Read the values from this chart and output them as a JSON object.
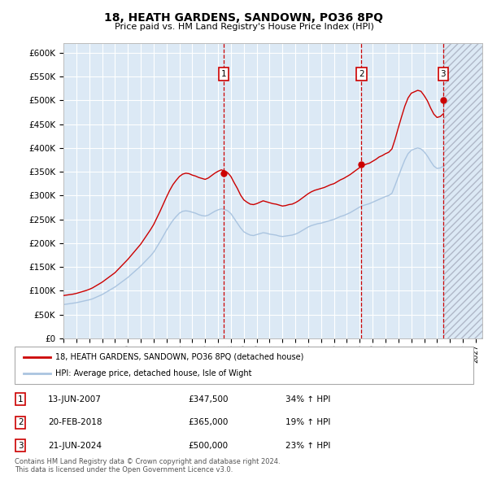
{
  "title": "18, HEATH GARDENS, SANDOWN, PO36 8PQ",
  "subtitle": "Price paid vs. HM Land Registry's House Price Index (HPI)",
  "ylim": [
    0,
    620000
  ],
  "yticks": [
    0,
    50000,
    100000,
    150000,
    200000,
    250000,
    300000,
    350000,
    400000,
    450000,
    500000,
    550000,
    600000
  ],
  "xlim_start": 1995.0,
  "xlim_end": 2027.5,
  "hpi_color": "#aac4e0",
  "price_color": "#cc0000",
  "bg_color": "#dce9f5",
  "grid_color": "#ffffff",
  "sale_dates": [
    2007.45,
    2018.13,
    2024.47
  ],
  "sale_prices": [
    347500,
    365000,
    500000
  ],
  "sale_labels": [
    "1",
    "2",
    "3"
  ],
  "legend_label_red": "18, HEATH GARDENS, SANDOWN, PO36 8PQ (detached house)",
  "legend_label_blue": "HPI: Average price, detached house, Isle of Wight",
  "table_rows": [
    [
      "1",
      "13-JUN-2007",
      "£347,500",
      "34% ↑ HPI"
    ],
    [
      "2",
      "20-FEB-2018",
      "£365,000",
      "19% ↑ HPI"
    ],
    [
      "3",
      "21-JUN-2024",
      "£500,000",
      "23% ↑ HPI"
    ]
  ],
  "footnote": "Contains HM Land Registry data © Crown copyright and database right 2024.\nThis data is licensed under the Open Government Licence v3.0.",
  "hpi_x": [
    1995.0,
    1995.25,
    1995.5,
    1995.75,
    1996.0,
    1996.25,
    1996.5,
    1996.75,
    1997.0,
    1997.25,
    1997.5,
    1997.75,
    1998.0,
    1998.25,
    1998.5,
    1998.75,
    1999.0,
    1999.25,
    1999.5,
    1999.75,
    2000.0,
    2000.25,
    2000.5,
    2000.75,
    2001.0,
    2001.25,
    2001.5,
    2001.75,
    2002.0,
    2002.25,
    2002.5,
    2002.75,
    2003.0,
    2003.25,
    2003.5,
    2003.75,
    2004.0,
    2004.25,
    2004.5,
    2004.75,
    2005.0,
    2005.25,
    2005.5,
    2005.75,
    2006.0,
    2006.25,
    2006.5,
    2006.75,
    2007.0,
    2007.25,
    2007.5,
    2007.75,
    2008.0,
    2008.25,
    2008.5,
    2008.75,
    2009.0,
    2009.25,
    2009.5,
    2009.75,
    2010.0,
    2010.25,
    2010.5,
    2010.75,
    2011.0,
    2011.25,
    2011.5,
    2011.75,
    2012.0,
    2012.25,
    2012.5,
    2012.75,
    2013.0,
    2013.25,
    2013.5,
    2013.75,
    2014.0,
    2014.25,
    2014.5,
    2014.75,
    2015.0,
    2015.25,
    2015.5,
    2015.75,
    2016.0,
    2016.25,
    2016.5,
    2016.75,
    2017.0,
    2017.25,
    2017.5,
    2017.75,
    2018.0,
    2018.25,
    2018.5,
    2018.75,
    2019.0,
    2019.25,
    2019.5,
    2019.75,
    2020.0,
    2020.25,
    2020.5,
    2020.75,
    2021.0,
    2021.25,
    2021.5,
    2021.75,
    2022.0,
    2022.25,
    2022.5,
    2022.75,
    2023.0,
    2023.25,
    2023.5,
    2023.75,
    2024.0,
    2024.25,
    2024.5
  ],
  "hpi_y": [
    71000,
    72000,
    73000,
    74000,
    75000,
    76500,
    78000,
    79500,
    81000,
    83000,
    86000,
    89000,
    92000,
    96000,
    100000,
    104000,
    108000,
    113000,
    118000,
    123000,
    128000,
    134000,
    140000,
    146000,
    152000,
    159000,
    166000,
    173000,
    181000,
    192000,
    203000,
    215000,
    227000,
    238000,
    248000,
    256000,
    263000,
    267000,
    268000,
    267000,
    265000,
    263000,
    260000,
    258000,
    257000,
    259000,
    263000,
    267000,
    270000,
    272000,
    271000,
    268000,
    262000,
    252000,
    242000,
    232000,
    224000,
    220000,
    217000,
    216000,
    218000,
    220000,
    222000,
    221000,
    219000,
    218000,
    217000,
    215000,
    214000,
    215000,
    216000,
    217000,
    219000,
    222000,
    226000,
    230000,
    234000,
    237000,
    239000,
    241000,
    242000,
    244000,
    246000,
    248000,
    250000,
    253000,
    256000,
    258000,
    261000,
    264000,
    268000,
    272000,
    276000,
    279000,
    281000,
    283000,
    286000,
    289000,
    292000,
    295000,
    298000,
    300000,
    305000,
    322000,
    340000,
    358000,
    375000,
    388000,
    395000,
    398000,
    400000,
    398000,
    392000,
    383000,
    372000,
    362000,
    357000,
    358000,
    362000
  ],
  "red_x": [
    1995.0,
    1995.25,
    1995.5,
    1995.75,
    1996.0,
    1996.25,
    1996.5,
    1996.75,
    1997.0,
    1997.25,
    1997.5,
    1997.75,
    1998.0,
    1998.25,
    1998.5,
    1998.75,
    1999.0,
    1999.25,
    1999.5,
    1999.75,
    2000.0,
    2000.25,
    2000.5,
    2000.75,
    2001.0,
    2001.25,
    2001.5,
    2001.75,
    2002.0,
    2002.25,
    2002.5,
    2002.75,
    2003.0,
    2003.25,
    2003.5,
    2003.75,
    2004.0,
    2004.25,
    2004.5,
    2004.75,
    2005.0,
    2005.25,
    2005.5,
    2005.75,
    2006.0,
    2006.25,
    2006.5,
    2006.75,
    2007.0,
    2007.25,
    2007.5,
    2007.75,
    2008.0,
    2008.25,
    2008.5,
    2008.75,
    2009.0,
    2009.25,
    2009.5,
    2009.75,
    2010.0,
    2010.25,
    2010.5,
    2010.75,
    2011.0,
    2011.25,
    2011.5,
    2011.75,
    2012.0,
    2012.25,
    2012.5,
    2012.75,
    2013.0,
    2013.25,
    2013.5,
    2013.75,
    2014.0,
    2014.25,
    2014.5,
    2014.75,
    2015.0,
    2015.25,
    2015.5,
    2015.75,
    2016.0,
    2016.25,
    2016.5,
    2016.75,
    2017.0,
    2017.25,
    2017.5,
    2017.75,
    2018.0,
    2018.25,
    2018.5,
    2018.75,
    2019.0,
    2019.25,
    2019.5,
    2019.75,
    2020.0,
    2020.25,
    2020.5,
    2020.75,
    2021.0,
    2021.25,
    2021.5,
    2021.75,
    2022.0,
    2022.25,
    2022.5,
    2022.75,
    2023.0,
    2023.25,
    2023.5,
    2023.75,
    2024.0,
    2024.25,
    2024.5
  ],
  "red_y": [
    90000,
    91000,
    92000,
    93000,
    94500,
    96500,
    98500,
    100500,
    103000,
    106000,
    110000,
    114000,
    118000,
    123000,
    128000,
    133000,
    138000,
    145000,
    152000,
    159000,
    166000,
    174000,
    182000,
    190000,
    198000,
    208000,
    218000,
    228000,
    239000,
    253000,
    267000,
    282000,
    297000,
    311000,
    323000,
    332000,
    340000,
    345000,
    347000,
    346000,
    343000,
    341000,
    338000,
    336000,
    334000,
    337000,
    342000,
    347000,
    351000,
    354000,
    352000,
    348000,
    340000,
    327000,
    315000,
    301000,
    291000,
    286000,
    282000,
    281000,
    283000,
    286000,
    289000,
    287000,
    285000,
    283000,
    282000,
    280000,
    278000,
    279000,
    281000,
    282000,
    285000,
    289000,
    294000,
    299000,
    304000,
    308000,
    311000,
    313000,
    315000,
    317000,
    320000,
    323000,
    325000,
    329000,
    333000,
    336000,
    340000,
    344000,
    349000,
    354000,
    359000,
    363000,
    366000,
    368000,
    372000,
    376000,
    381000,
    384000,
    388000,
    391000,
    398000,
    419000,
    443000,
    466000,
    488000,
    505000,
    515000,
    518000,
    521000,
    519000,
    510000,
    499000,
    484000,
    471000,
    464000,
    466000,
    472000
  ]
}
